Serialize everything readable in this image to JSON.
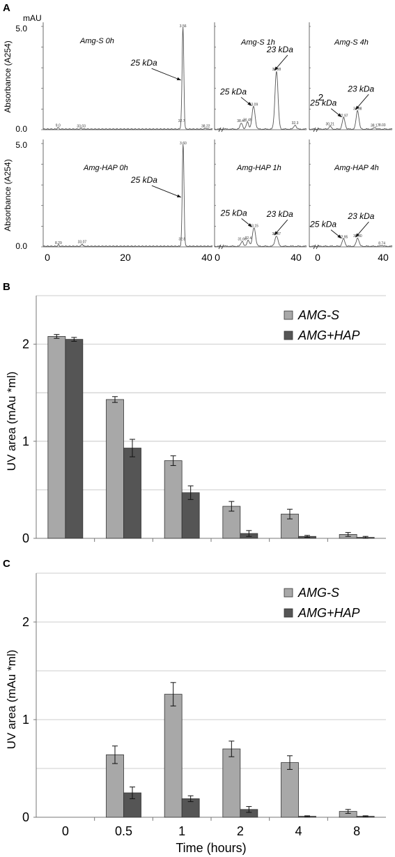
{
  "panelA": {
    "label": "A",
    "unit": "mAU",
    "ylabel": "Absorbance (A254)",
    "ytick_major": [
      "5.0",
      "0.0"
    ],
    "xticks": [
      "0",
      "20",
      "40",
      "0",
      "40",
      "0",
      "40"
    ],
    "break_symbol": "//",
    "stray_label": "2",
    "chromatograms": [
      {
        "title": "Amg-S 0h",
        "peaks": [
          {
            "label": "25 kDa",
            "rt": 33.03,
            "height": 4.9
          }
        ],
        "minor": [
          {
            "rt": 3.5,
            "h": 0.08
          },
          {
            "rt": 9.0,
            "h": 0.05
          },
          {
            "rt": 32.7,
            "h": 0.3
          },
          {
            "rt": 38.4,
            "h": 0.05
          }
        ],
        "small_labels": [
          "3.56",
          "9.0",
          "33.03",
          "32.7",
          "38.22"
        ]
      },
      {
        "title": "Amg-S 1h",
        "peaks": [
          {
            "label": "25 kDa",
            "rt": 33.09,
            "height": 1.1
          },
          {
            "label": "23 kDa",
            "rt": 36.08,
            "height": 2.8
          }
        ],
        "minor": [
          {
            "rt": 31.5,
            "h": 0.3
          },
          {
            "rt": 32.3,
            "h": 0.35
          },
          {
            "rt": 38.5,
            "h": 0.2
          }
        ],
        "small_labels": [
          "33.09",
          "36.08",
          "38.47",
          "31.45",
          "32.3"
        ]
      },
      {
        "title": "Amg-S 4h",
        "peaks": [
          {
            "label": "25 kDa",
            "rt": 32.97,
            "height": 0.55
          },
          {
            "label": "23 kDa",
            "rt": 34.98,
            "height": 0.9
          }
        ],
        "minor": [
          {
            "rt": 31.0,
            "h": 0.15
          },
          {
            "rt": 37.5,
            "h": 0.08
          }
        ],
        "small_labels": [
          "32.97",
          "34.98",
          "30.21",
          "38.17",
          "8.03"
        ]
      },
      {
        "title": "Amg-HAP 0h",
        "peaks": [
          {
            "label": "25 kDa",
            "rt": 33.07,
            "height": 4.9
          }
        ],
        "minor": [
          {
            "rt": 3.6,
            "h": 0.07
          },
          {
            "rt": 9.2,
            "h": 0.12
          },
          {
            "rt": 32.8,
            "h": 0.25
          }
        ],
        "small_labels": [
          "3.60",
          "8.29",
          "33.07",
          "32.8"
        ]
      },
      {
        "title": "Amg-HAP 1h",
        "peaks": [
          {
            "label": "25 kDa",
            "rt": 33.15,
            "height": 0.9
          },
          {
            "label": "23 kDa",
            "rt": 36.07,
            "height": 0.5
          }
        ],
        "minor": [
          {
            "rt": 31.6,
            "h": 0.25
          },
          {
            "rt": 32.4,
            "h": 0.3
          }
        ],
        "small_labels": [
          "33.15",
          "36.07",
          "31.66",
          "32.4"
        ]
      },
      {
        "title": "Amg-HAP 4h",
        "peaks": [
          {
            "label": "25 kDa",
            "rt": 32.95,
            "height": 0.35
          },
          {
            "label": "23 kDa",
            "rt": 35.0,
            "height": 0.4
          }
        ],
        "minor": [
          {
            "rt": 38.5,
            "h": 0.05
          }
        ],
        "small_labels": [
          "32.95",
          "38.30",
          "8.74"
        ]
      }
    ]
  },
  "chart_data": [
    {
      "panel": "B",
      "type": "bar",
      "categories": [
        "0",
        "0.5",
        "1",
        "2",
        "4",
        "8"
      ],
      "series": [
        {
          "name": "AMG-S",
          "color": "#a8a8a8",
          "values": [
            2.08,
            1.43,
            0.8,
            0.33,
            0.25,
            0.04
          ],
          "errors": [
            0.02,
            0.03,
            0.05,
            0.05,
            0.05,
            0.02
          ]
        },
        {
          "name": "AMG+HAP",
          "color": "#555555",
          "values": [
            2.05,
            0.93,
            0.47,
            0.05,
            0.02,
            0.01
          ],
          "errors": [
            0.02,
            0.09,
            0.07,
            0.03,
            0.01,
            0.01
          ]
        }
      ],
      "ylabel": "UV area (mAu *ml)",
      "ylim": [
        0,
        2.5
      ],
      "yticks": [
        0,
        1,
        2
      ],
      "grid": true,
      "legend": "top-right"
    },
    {
      "panel": "C",
      "type": "bar",
      "categories": [
        "0",
        "0.5",
        "1",
        "2",
        "4",
        "8"
      ],
      "series": [
        {
          "name": "AMG-S",
          "color": "#a8a8a8",
          "values": [
            0,
            0.64,
            1.26,
            0.7,
            0.56,
            0.06
          ],
          "errors": [
            0,
            0.09,
            0.12,
            0.08,
            0.07,
            0.02
          ]
        },
        {
          "name": "AMG+HAP",
          "color": "#555555",
          "values": [
            0,
            0.25,
            0.19,
            0.08,
            0.01,
            0.01
          ],
          "errors": [
            0,
            0.06,
            0.03,
            0.03,
            0.005,
            0.005
          ]
        }
      ],
      "xlabel": "Time (hours)",
      "ylabel": "UV area (mAu *ml)",
      "ylim": [
        0,
        2.5
      ],
      "yticks": [
        0,
        1,
        2
      ],
      "grid": true,
      "legend": "top-right"
    }
  ]
}
